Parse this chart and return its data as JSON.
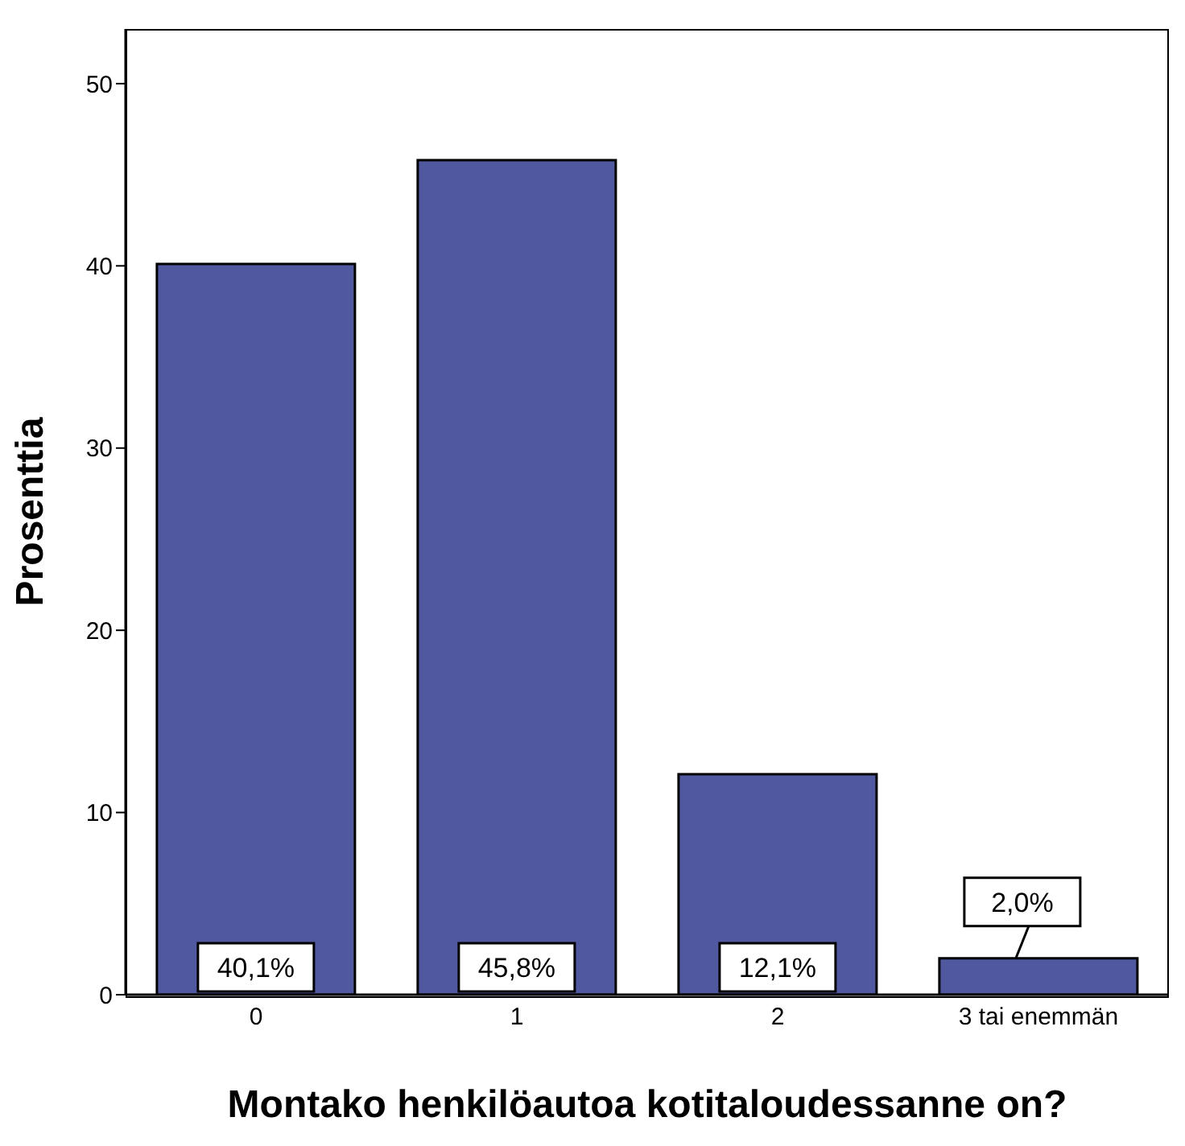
{
  "chart_data": {
    "type": "bar",
    "xlabel": "Montako henkilöautoa kotitaloudessanne on?",
    "ylabel": "Prosenttia",
    "categories": [
      "0",
      "1",
      "2",
      "3 tai enemmän"
    ],
    "values": [
      40.1,
      45.8,
      12.1,
      2.0
    ],
    "value_labels": [
      "40,1%",
      "45,8%",
      "12,1%",
      "2,0%"
    ],
    "color": "#5058a0",
    "ylim": [
      0,
      53
    ],
    "yticks": [
      0,
      10,
      20,
      30,
      40,
      50
    ]
  }
}
